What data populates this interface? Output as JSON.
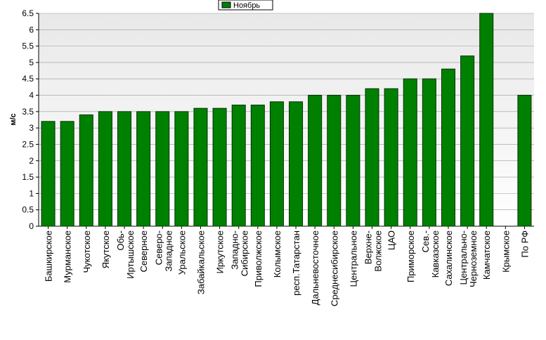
{
  "chart_data": {
    "type": "bar",
    "legend": "Ноябрь",
    "y_label": "м/с",
    "categories": [
      "Башкирское",
      "Мурманское",
      "Чукотское",
      "Якутское",
      "Обь-Иртышское",
      "Северное",
      "Северо-Западное",
      "Уральское",
      "Забайкальское",
      "Иркутское",
      "Западно-Сибирское",
      "Приволжское",
      "Колымское",
      "респ.Татарстан",
      "Дальневосточное",
      "Среднесибирское",
      "Центральное",
      "Верхне-Волжское",
      "ЦАО",
      "Приморское",
      "Сев.-Кавказское",
      "Сахалинское",
      "Центрально-Черноземное",
      "Камчатское",
      "Крымское",
      "По РФ"
    ],
    "values": [
      3.2,
      3.2,
      3.4,
      3.5,
      3.5,
      3.5,
      3.5,
      3.5,
      3.6,
      3.6,
      3.7,
      3.7,
      3.8,
      3.8,
      4.0,
      4.0,
      4.0,
      4.2,
      4.2,
      4.5,
      4.5,
      4.8,
      5.2,
      6.5,
      null,
      4.0
    ],
    "color": "#008000",
    "ylim": [
      0,
      6.5
    ],
    "yticks": [
      0,
      0.5,
      1,
      1.5,
      2,
      2.5,
      3,
      3.5,
      4,
      4.5,
      5,
      5.5,
      6,
      6.5
    ],
    "grid": true
  }
}
